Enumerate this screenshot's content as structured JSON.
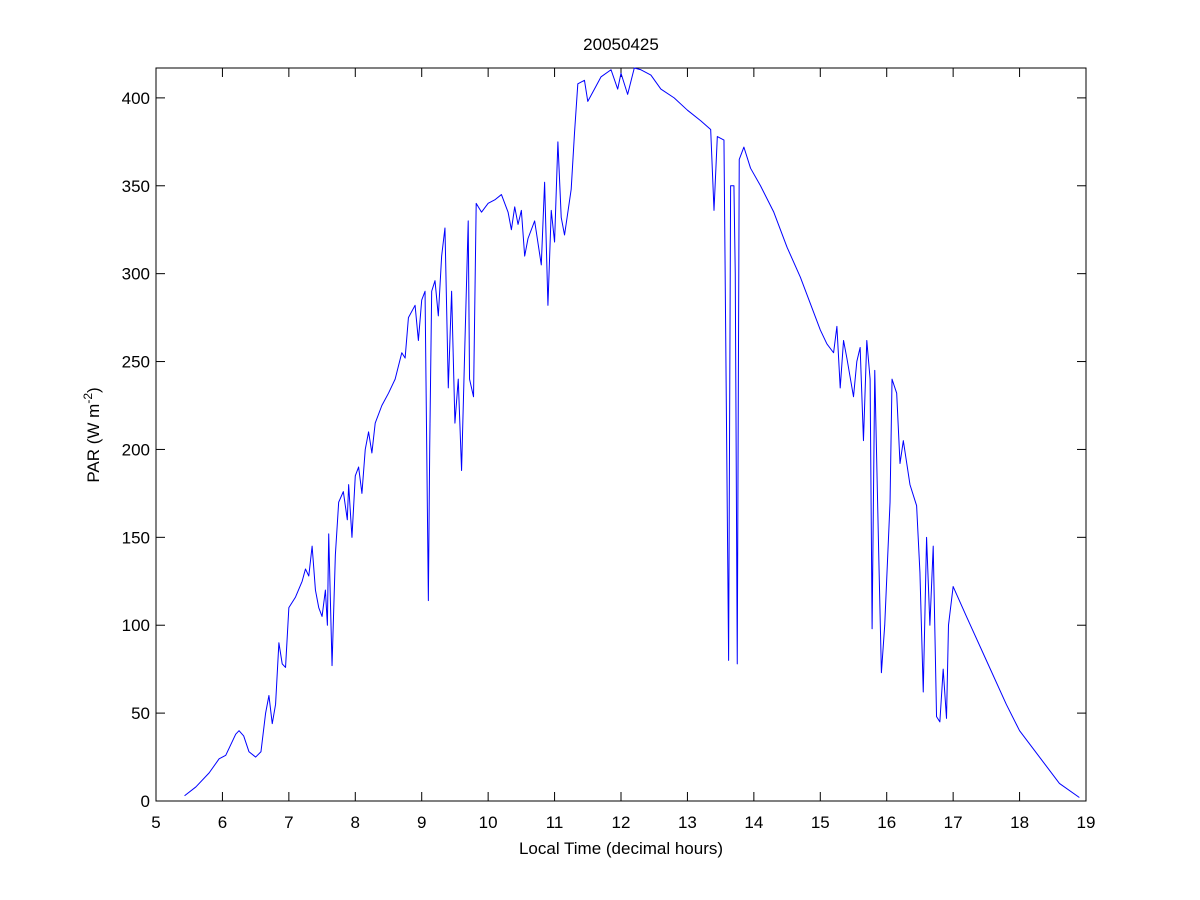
{
  "chart_data": {
    "type": "line",
    "title": "20050425",
    "x_label": "Local Time (decimal hours)",
    "y_label": {
      "text": "PAR (W m",
      "superscript": "-2",
      "suffix": ")"
    },
    "color": "#0000ff",
    "xlim": [
      5,
      19
    ],
    "ylim": [
      0,
      417
    ],
    "xticks": [
      5,
      6,
      7,
      8,
      9,
      10,
      11,
      12,
      13,
      14,
      15,
      16,
      17,
      18,
      19
    ],
    "yticks": [
      0,
      50,
      100,
      150,
      200,
      250,
      300,
      350,
      400
    ],
    "x": [
      5.43,
      5.6,
      5.8,
      5.95,
      6.05,
      6.2,
      6.25,
      6.32,
      6.4,
      6.5,
      6.58,
      6.65,
      6.7,
      6.75,
      6.8,
      6.85,
      6.9,
      6.95,
      7.0,
      7.1,
      7.2,
      7.25,
      7.3,
      7.35,
      7.4,
      7.45,
      7.5,
      7.55,
      7.58,
      7.6,
      7.65,
      7.7,
      7.75,
      7.82,
      7.88,
      7.9,
      7.95,
      8.0,
      8.05,
      8.1,
      8.15,
      8.2,
      8.25,
      8.3,
      8.4,
      8.5,
      8.6,
      8.7,
      8.75,
      8.8,
      8.9,
      8.95,
      9.0,
      9.05,
      9.1,
      9.12,
      9.15,
      9.2,
      9.25,
      9.3,
      9.35,
      9.4,
      9.45,
      9.5,
      9.55,
      9.6,
      9.65,
      9.7,
      9.72,
      9.78,
      9.82,
      9.9,
      10.0,
      10.1,
      10.2,
      10.3,
      10.35,
      10.4,
      10.45,
      10.5,
      10.55,
      10.6,
      10.7,
      10.8,
      10.85,
      10.9,
      10.95,
      11.0,
      11.05,
      11.1,
      11.15,
      11.2,
      11.25,
      11.3,
      11.35,
      11.45,
      11.5,
      11.6,
      11.7,
      11.85,
      11.95,
      12.0,
      12.1,
      12.2,
      12.3,
      12.45,
      12.6,
      12.8,
      13.0,
      13.2,
      13.35,
      13.4,
      13.45,
      13.55,
      13.62,
      13.65,
      13.7,
      13.72,
      13.75,
      13.78,
      13.85,
      13.95,
      14.1,
      14.3,
      14.5,
      14.7,
      14.9,
      15.0,
      15.1,
      15.2,
      15.25,
      15.3,
      15.35,
      15.4,
      15.5,
      15.55,
      15.6,
      15.65,
      15.7,
      15.75,
      15.78,
      15.82,
      15.88,
      15.92,
      15.97,
      16.05,
      16.08,
      16.15,
      16.2,
      16.25,
      16.35,
      16.45,
      16.5,
      16.55,
      16.6,
      16.65,
      16.7,
      16.75,
      16.8,
      16.85,
      16.9,
      16.93,
      17.0,
      17.2,
      17.5,
      17.8,
      18.0,
      18.3,
      18.6,
      18.9
    ],
    "values": [
      3,
      8,
      16,
      24,
      26,
      38,
      40,
      37,
      28,
      25,
      28,
      50,
      60,
      44,
      55,
      90,
      78,
      76,
      110,
      116,
      125,
      132,
      128,
      145,
      120,
      110,
      105,
      120,
      100,
      152,
      77,
      140,
      170,
      176,
      160,
      180,
      150,
      185,
      190,
      175,
      200,
      210,
      198,
      215,
      225,
      232,
      240,
      255,
      252,
      275,
      282,
      262,
      285,
      290,
      114,
      200,
      290,
      296,
      276,
      310,
      326,
      235,
      290,
      215,
      240,
      188,
      260,
      330,
      240,
      230,
      340,
      335,
      340,
      342,
      345,
      335,
      325,
      338,
      328,
      336,
      310,
      320,
      330,
      305,
      352,
      282,
      336,
      318,
      375,
      332,
      322,
      335,
      348,
      380,
      408,
      410,
      398,
      405,
      412,
      416,
      405,
      414,
      402,
      417,
      416,
      413,
      405,
      400,
      393,
      387,
      382,
      336,
      378,
      376,
      80,
      350,
      350,
      300,
      78,
      365,
      372,
      360,
      350,
      335,
      315,
      298,
      278,
      268,
      260,
      255,
      270,
      235,
      262,
      252,
      230,
      250,
      258,
      205,
      262,
      240,
      98,
      245,
      140,
      73,
      100,
      170,
      240,
      232,
      192,
      205,
      180,
      168,
      130,
      62,
      150,
      100,
      145,
      48,
      45,
      75,
      47,
      100,
      122,
      105,
      80,
      55,
      40,
      25,
      10,
      2
    ]
  }
}
